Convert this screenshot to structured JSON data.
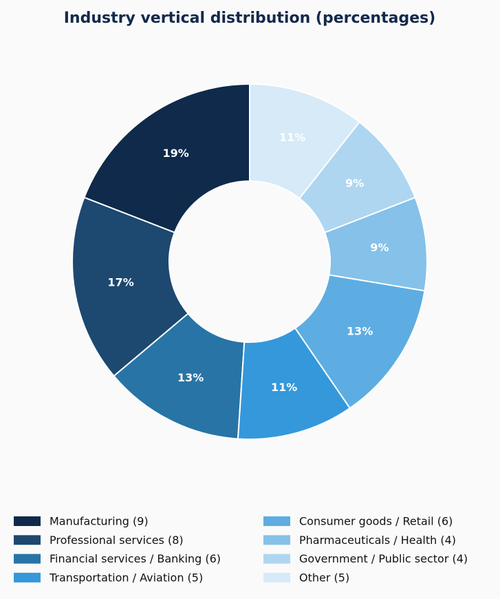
{
  "chart_data": {
    "type": "donut",
    "title": "Industry vertical distribution (percentages)",
    "categories": [
      "Manufacturing (9)",
      "Professional services (8)",
      "Financial services / Banking (6)",
      "Transportation / Aviation (5)",
      "Consumer goods / Retail (6)",
      "Pharmaceuticals / Health (4)",
      "Government / Public sector (4)",
      "Other (5)"
    ],
    "values": [
      19.1,
      17.0,
      12.8,
      10.6,
      12.8,
      8.5,
      8.5,
      10.6
    ],
    "value_labels": [
      "19%",
      "17%",
      "13%",
      "11%",
      "13%",
      "9%",
      "9%",
      "11%"
    ],
    "colors": [
      "#0f2a4a",
      "#1d4870",
      "#2874a6",
      "#3498db",
      "#5dade2",
      "#85c1e9",
      "#aed6f1",
      "#d6eaf8"
    ],
    "legend": "bottom"
  }
}
